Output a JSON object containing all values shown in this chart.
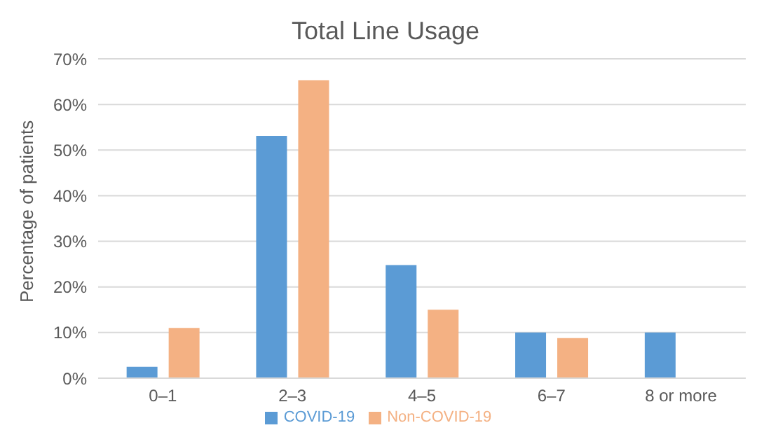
{
  "chart_data": {
    "type": "bar",
    "title": "Total Line Usage",
    "ylabel": "Percentage of patients",
    "categories": [
      "0–1",
      "2–3",
      "4–5",
      "6–7",
      "8 or more"
    ],
    "series": [
      {
        "name": "COVID-19",
        "color": "#5b9bd5",
        "values": [
          2.5,
          53.1,
          24.8,
          10,
          10
        ]
      },
      {
        "name": "Non-COVID-19",
        "color": "#f4b183",
        "values": [
          11,
          65.3,
          15,
          8.8,
          0
        ]
      }
    ],
    "ylim": [
      0,
      70
    ],
    "yticks": [
      {
        "value": 0,
        "label": "0%"
      },
      {
        "value": 10,
        "label": "10%"
      },
      {
        "value": 20,
        "label": "20%"
      },
      {
        "value": 30,
        "label": "30%"
      },
      {
        "value": 40,
        "label": "40%"
      },
      {
        "value": 50,
        "label": "50%"
      },
      {
        "value": 60,
        "label": "60%"
      },
      {
        "value": 70,
        "label": "70%"
      }
    ],
    "grid": "y",
    "legend": "bottom"
  }
}
